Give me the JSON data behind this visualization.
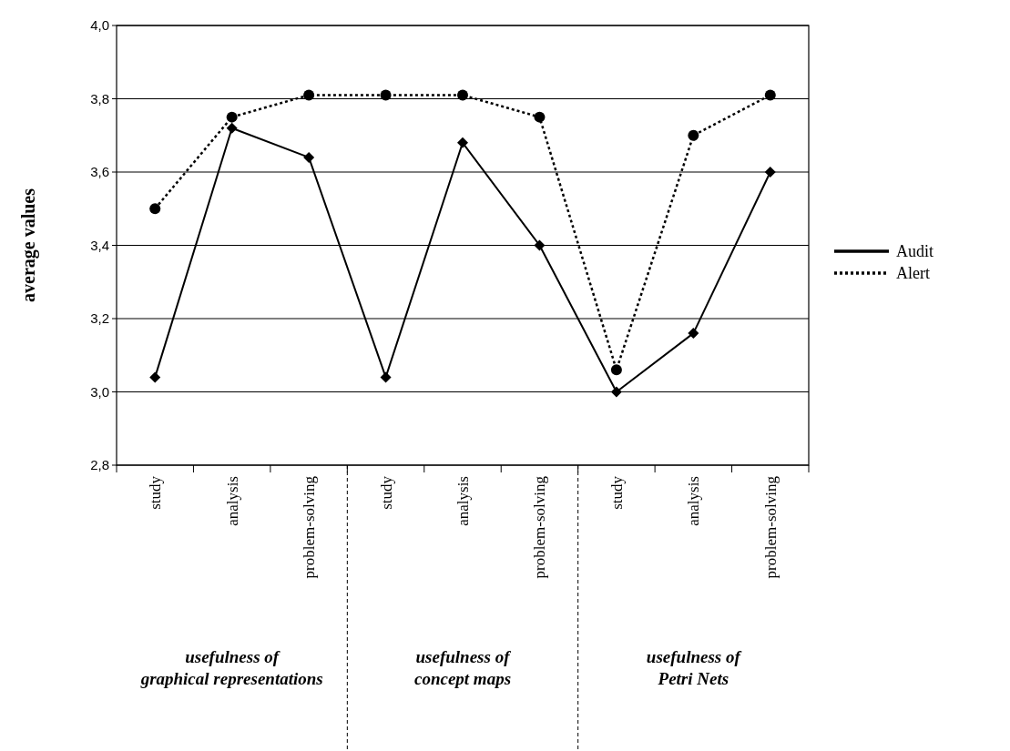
{
  "chart_data": {
    "type": "line",
    "ylabel": "average values",
    "categories": [
      "study",
      "analysis",
      "problem-solving",
      "study",
      "analysis",
      "problem-solving",
      "study",
      "analysis",
      "problem-solving"
    ],
    "series": [
      {
        "name": "Audit",
        "color": "#000000",
        "values": [
          3.04,
          3.72,
          3.64,
          3.04,
          3.68,
          3.4,
          3.0,
          3.16,
          3.6
        ],
        "marker": "diamond",
        "line_style": "solid"
      },
      {
        "name": "Alert",
        "color": "#000000",
        "values": [
          3.5,
          3.75,
          3.81,
          3.81,
          3.81,
          3.75,
          3.06,
          3.7,
          3.81
        ],
        "marker": "circle",
        "line_style": "dotted"
      }
    ],
    "ylim": [
      2.8,
      4.0
    ],
    "yticks": [
      {
        "value": 2.8,
        "label": "2,8"
      },
      {
        "value": 3.0,
        "label": "3,0"
      },
      {
        "value": 3.2,
        "label": "3,2"
      },
      {
        "value": 3.4,
        "label": "3,4"
      },
      {
        "value": 3.6,
        "label": "3,6"
      },
      {
        "value": 3.8,
        "label": "3,8"
      },
      {
        "value": 4.0,
        "label": "4,0"
      }
    ],
    "grid": "y",
    "legend": "right",
    "annotations": [
      "usefulness of\ngraphical representations",
      "usefulness of\nconcept maps",
      "usefulness of\nPetri Nets"
    ]
  }
}
